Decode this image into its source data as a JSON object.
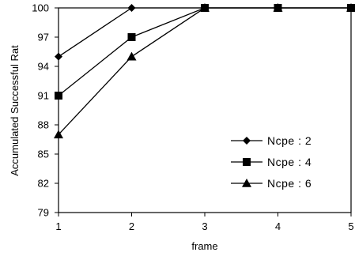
{
  "chart_data": {
    "type": "line",
    "title": "",
    "xlabel": "frame",
    "ylabel": "Accumulated Successful Rat",
    "x": [
      1,
      2,
      3,
      4,
      5
    ],
    "xlim": [
      1,
      5
    ],
    "ylim": [
      79,
      100
    ],
    "x_ticks": [
      "1",
      "2",
      "3",
      "4",
      "5"
    ],
    "y_ticks": [
      "79",
      "82",
      "85",
      "88",
      "91",
      "94",
      "97",
      "100"
    ],
    "y_tick_values": [
      79,
      82,
      85,
      88,
      91,
      94,
      97,
      100
    ],
    "grid": false,
    "legend_position": "bottom-right",
    "series": [
      {
        "name": "Ncpe : 2",
        "marker": "diamond",
        "color": "#000000",
        "values": [
          95,
          100,
          100,
          100,
          100
        ]
      },
      {
        "name": "Ncpe : 4",
        "marker": "square",
        "color": "#000000",
        "values": [
          91,
          97,
          100,
          100,
          100
        ]
      },
      {
        "name": "Ncpe : 6",
        "marker": "triangle",
        "color": "#000000",
        "values": [
          87,
          95,
          100,
          100,
          100
        ]
      }
    ]
  }
}
